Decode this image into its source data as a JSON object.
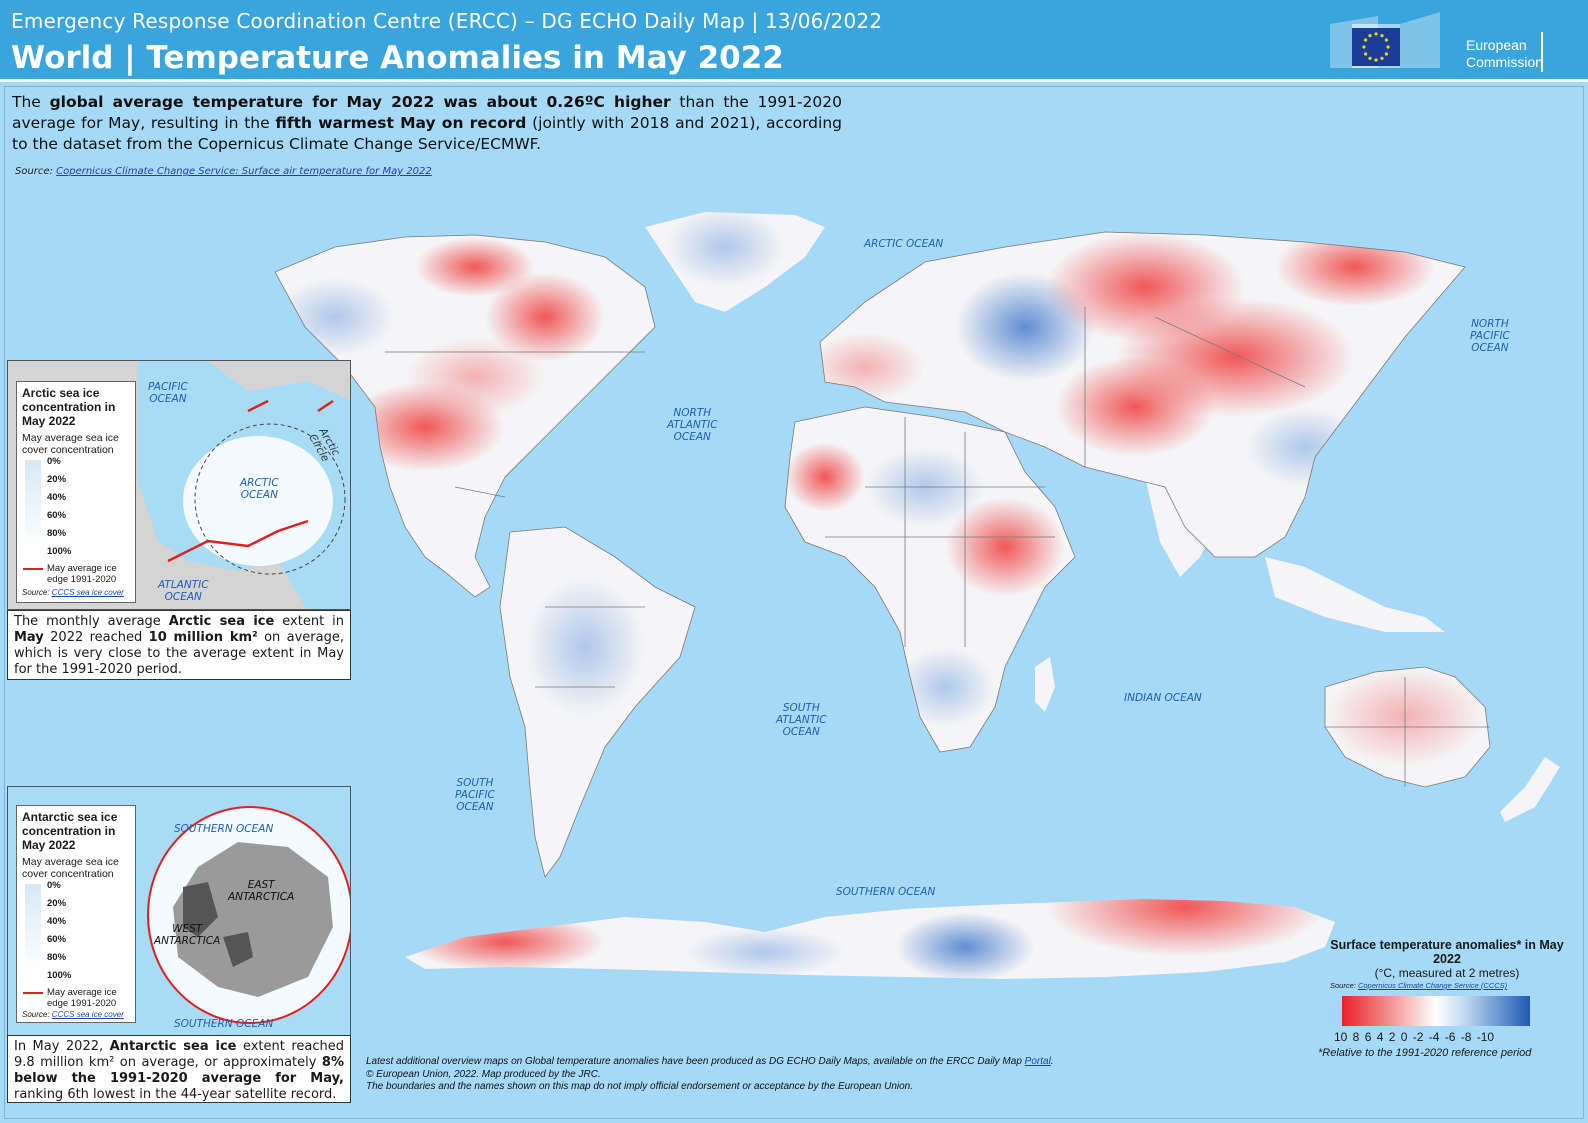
{
  "header": {
    "subtitle": "Emergency Response Coordination Centre (ERCC) – DG ECHO Daily Map | 13/06/2022",
    "title": "World | Temperature Anomalies in May 2022",
    "logo_line1": "European",
    "logo_line2": "Commission"
  },
  "intro": {
    "p1": "The ",
    "b1": "global average temperature for May 2022 was about 0.26ºC higher",
    "p2": " than the 1991-2020 average for May, resulting in the ",
    "b2": "fifth warmest May on record",
    "p3": " (jointly with 2018 and 2021), according to the dataset from the Copernicus Climate Change Service/ECMWF.",
    "source_label": "Source: ",
    "source_link": "Copernicus Climate Change Service: Surface air temperature for May 2022"
  },
  "oceans": {
    "arctic": "ARCTIC OCEAN",
    "north_pacific": "NORTH\nPACIFIC\nOCEAN",
    "north_atlantic": "NORTH\nATLANTIC\nOCEAN",
    "south_atlantic": "SOUTH\nATLANTIC\nOCEAN",
    "south_pacific": "SOUTH\nPACIFIC\nOCEAN",
    "indian": "INDIAN OCEAN",
    "southern": "SOUTHERN OCEAN"
  },
  "arctic_inset": {
    "title": "Arctic sea ice concentration in May 2022",
    "subtitle": "May average sea ice cover concentration",
    "ticks": [
      "0%",
      "20%",
      "40%",
      "60%",
      "80%",
      "100%"
    ],
    "edge_label": "May average ice edge 1991-2020",
    "source_label": "Source: ",
    "source_link": "CCCS sea ice cover",
    "pacific": "PACIFIC\nOCEAN",
    "arctic": "ARCTIC\nOCEAN",
    "atlantic": "ATLANTIC\nOCEAN",
    "circle": "Arctic Circle",
    "text_a": "The monthly average ",
    "text_b": "Arctic sea ice",
    "text_c": " extent in ",
    "text_d": "May",
    "text_e": " 2022 reached ",
    "text_f": "10 million km²",
    "text_g": " on average, which is very close to the average extent in May for the 1991-2020 period."
  },
  "antarctic_inset": {
    "title": "Antarctic sea ice concentration in May 2022",
    "subtitle": "May average sea ice cover concentration",
    "ticks": [
      "0%",
      "20%",
      "40%",
      "60%",
      "80%",
      "100%"
    ],
    "edge_label": "May average ice edge 1991-2020",
    "source_label": "Source: ",
    "source_link": "CCCS sea ice cover",
    "southern_top": "SOUTHERN OCEAN",
    "southern_bottom": "SOUTHERN OCEAN",
    "east": "EAST\nANTARCTICA",
    "west": "WEST\nANTARCTICA",
    "text_a": "In May 2022, ",
    "text_b": "Antarctic sea ice",
    "text_c": " extent reached 9.8 million km² on average, or approximately ",
    "text_d": "8%  below the 1991-2020 average for May,",
    "text_e": " ranking 6th lowest in the 44-year satellite record."
  },
  "temp_legend": {
    "title": "Surface temperature anomalies*  in May 2022",
    "subtitle": "(°C, measured at 2 metres)",
    "source_label": "Source: ",
    "source_link": "Copernicus Climate Change Service (CCCS)",
    "ticks": "10 8 6 4 2 0 -2 -4 -6 -8 -10",
    "note": "*Relative to the 1991-2020 reference period",
    "colors": {
      "warm": "#e8202a",
      "neutral": "#ffffff",
      "cold": "#1f59b2"
    }
  },
  "footer": {
    "line1_a": "Latest additional overview maps on Global temperature anomalies have been produced as DG ECHO Daily Maps, available on the ERCC Daily Map ",
    "line1_link": "Portal",
    "line1_b": ".",
    "line2": "© European Union, 2022. Map produced by the JRC.",
    "line3": "The boundaries and the names shown on this map do not imply official endorsement or acceptance by the European Union."
  }
}
